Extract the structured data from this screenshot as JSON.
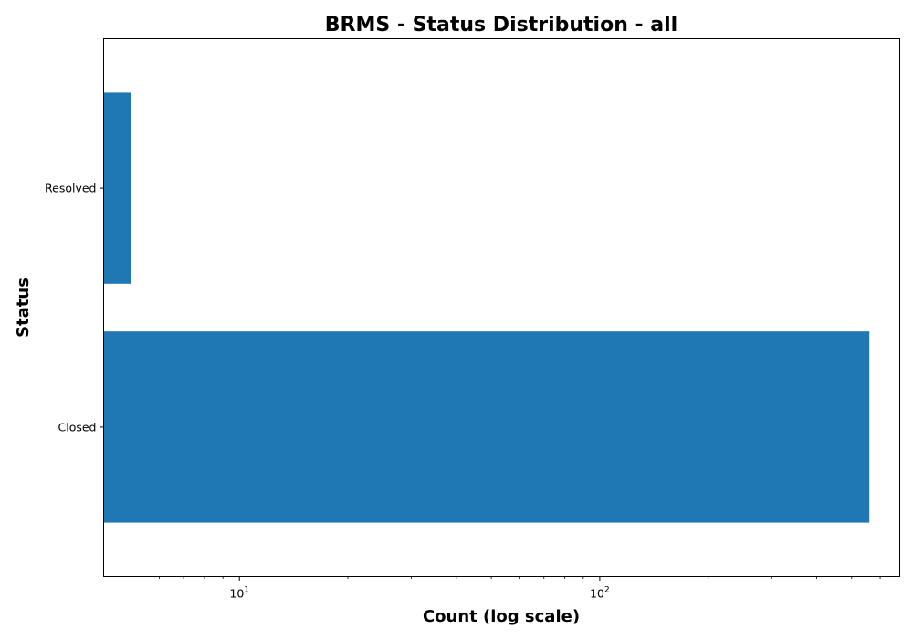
{
  "chart_data": {
    "type": "bar",
    "orientation": "horizontal",
    "title": "BRMS - Status Distribution - all",
    "xlabel": "Count (log scale)",
    "ylabel": "Status",
    "xscale": "log",
    "xlim": [
      4.2,
      680
    ],
    "categories": [
      "Closed",
      "Resolved"
    ],
    "values": [
      560,
      5
    ],
    "bar_color": "#1f77b4",
    "x_major_ticks": [
      {
        "value": 10,
        "base": "10",
        "exponent": "1"
      },
      {
        "value": 100,
        "base": "10",
        "exponent": "2"
      }
    ],
    "grid": false,
    "legend": "none"
  }
}
